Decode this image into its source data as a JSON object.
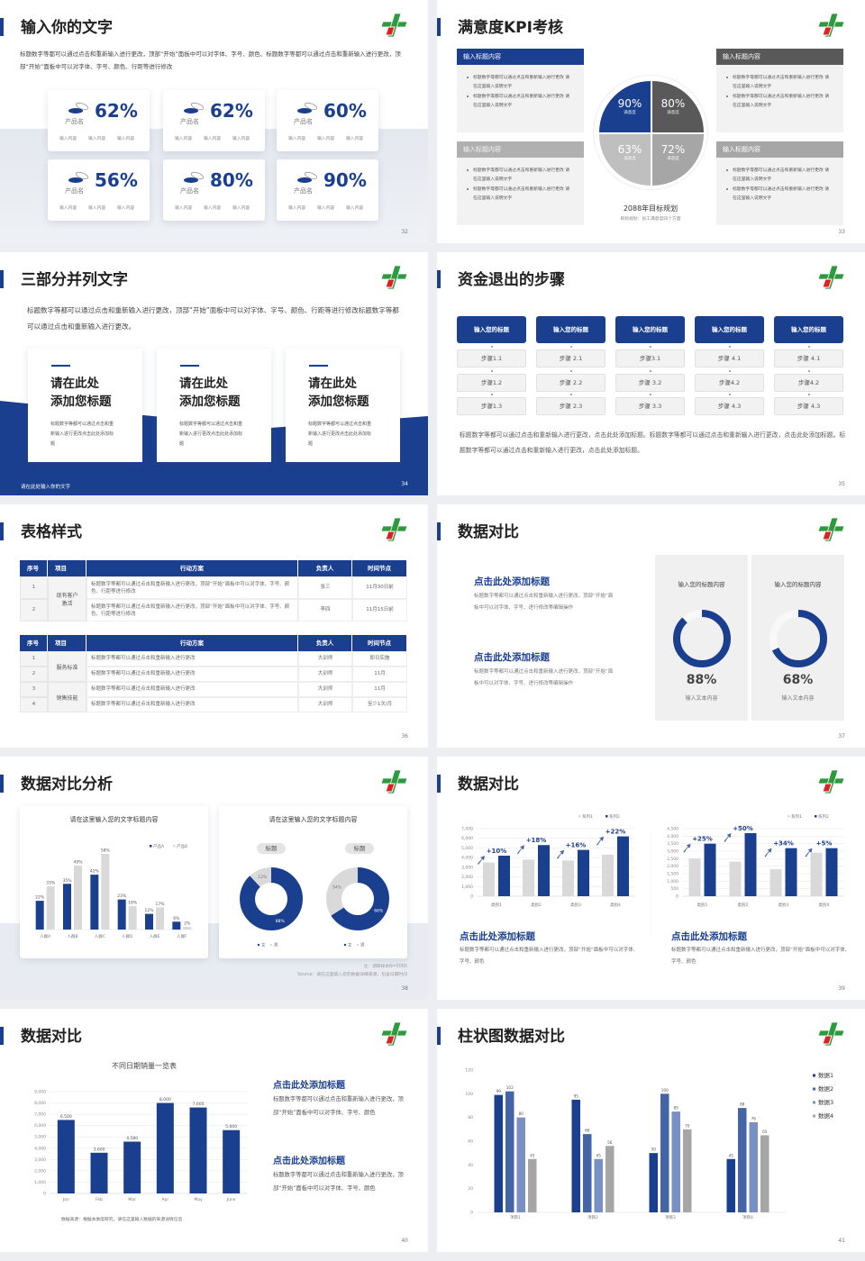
{
  "colors": {
    "primary": "#1b3f8f",
    "dark_gray": "#595959",
    "gray": "#a6a6a6",
    "light_gray": "#d9d9d9",
    "logo_green": "#2e9a3e",
    "logo_red": "#e02020"
  },
  "s32": {
    "title": "输入你的文字",
    "page": "32",
    "body": "标题数字等都可以通过点击和重新输入进行更改，顶部“开始”面板中可以对字体、字号、颜色、标题数字等都可以通过点击和重新输入进行更改，顶部“开始”面板中可以对字体、字号、颜色、行距等进行修改",
    "cards": [
      {
        "value": "62%",
        "name": "产品名",
        "items": [
          "输入内容",
          "输入内容",
          "输入内容"
        ]
      },
      {
        "value": "62%",
        "name": "产品名",
        "items": [
          "输入内容",
          "输入内容",
          "输入内容"
        ]
      },
      {
        "value": "60%",
        "name": "产品名",
        "items": [
          "输入内容",
          "输入内容",
          "输入内容"
        ]
      },
      {
        "value": "56%",
        "name": "产品名",
        "items": [
          "输入内容",
          "输入内容",
          "输入内容"
        ]
      },
      {
        "value": "80%",
        "name": "产品名",
        "items": [
          "输入内容",
          "输入内容",
          "输入内容"
        ]
      },
      {
        "value": "90%",
        "name": "产品名",
        "items": [
          "输入内容",
          "输入内容",
          "输入内容"
        ]
      }
    ]
  },
  "s33": {
    "title": "满意度KPI考核",
    "page": "33",
    "boxes": [
      {
        "header": "输入标题内容",
        "bullets": [
          "标题数字等都可以通过点击和重新输入进行更改 请在这里输入说明文字",
          "标题数字等都可以通过点击和重新输入进行更改 请在这里输入说明文字"
        ]
      },
      {
        "header": "输入标题内容",
        "bullets": [
          "标题数字等都可以通过点击和重新输入进行更改 请在这里输入说明文字",
          "标题数字等都可以通过点击和重新输入进行更改 请在这里输入说明文字"
        ]
      },
      {
        "header": "输入标题内容",
        "bullets": [
          "标题数字等都可以通过点击和重新输入进行更改 请在这里输入说明文字",
          "标题数字等都可以通过点击和重新输入进行更改 请在这里输入说明文字"
        ]
      },
      {
        "header": "输入标题内容",
        "bullets": [
          "标题数字等都可以通过点击和重新输入进行更改 请在这里输入说明文字",
          "标题数字等都可以通过点击和重新输入进行更改 请在这里输入说明文字"
        ]
      }
    ],
    "quadrants": [
      {
        "value": "90%",
        "label": "满意度"
      },
      {
        "value": "80%",
        "label": "满意度"
      },
      {
        "value": "63%",
        "label": "满意度"
      },
      {
        "value": "72%",
        "label": "满意度"
      }
    ],
    "plan_title": "2088年目标规划",
    "plan_sub": "目标规划：员工满意度四个方面"
  },
  "s34": {
    "title": "三部分并列文字",
    "page": "34",
    "body": "标题数字等都可以通过点击和重新输入进行更改，顶部“开始”面板中可以对字体、字号、颜色、行距等进行修改标题数字等都可以通过点击和重新输入进行更改。",
    "cards": [
      {
        "line1": "请在此处",
        "line2": "添加您标题",
        "text": "标题数字等都可以通过点击和重新输入进行更改点击此处添加标题"
      },
      {
        "line1": "请在此处",
        "line2": "添加您标题",
        "text": "标题数字等都可以通过点击和重新输入进行更改点击此处添加标题"
      },
      {
        "line1": "请在此处",
        "line2": "添加您标题",
        "text": "标题数字等都可以通过点击和重新输入进行更改点击此处添加标题"
      }
    ],
    "footer": "请在此处输入你的文字"
  },
  "s35": {
    "title": "资金退出的步骤",
    "page": "35",
    "columns": [
      {
        "header": "输入您的标题",
        "steps": [
          "步骤1.1",
          "步骤1.2",
          "步骤1.3"
        ]
      },
      {
        "header": "输入您的标题",
        "steps": [
          "步骤 2.1",
          "步骤 2.2",
          "步骤 2.3"
        ]
      },
      {
        "header": "输入您的标题",
        "steps": [
          "步骤3.1",
          "步骤 3.2",
          "步骤 3.3"
        ]
      },
      {
        "header": "输入您的标题",
        "steps": [
          "步骤 4.1",
          "步骤4.2",
          "步骤 4.3"
        ]
      },
      {
        "header": "输入您的标题",
        "steps": [
          "步骤 4.1",
          "步骤4.2",
          "步骤 4.3"
        ]
      }
    ],
    "body": "标题数字等都可以通过点击和重新输入进行更改，点击此处添加标题。标题数字等都可以通过点击和重新输入进行更改，点击此处添加标题。标题数字等都可以通过点击和重新输入进行更改，点击此处添加标题。"
  },
  "s36": {
    "title": "表格样式",
    "page": "36",
    "headers": [
      "序号",
      "项目",
      "行动方案",
      "负责人",
      "时间节点"
    ],
    "table1": {
      "groups": [
        {
          "name": "现有客户激活",
          "rows": [
            {
              "no": "1",
              "plan": "标题数字等都可以通过点击和重新输入进行更改，顶部“开始”面板中可以对字体、字号、颜色、行距等进行修改",
              "owner": "张三",
              "time": "11月30日前"
            },
            {
              "no": "2",
              "plan": "标题数字等都可以通过点击和重新输入进行更改，顶部“开始”面板中可以对字体、字号、颜色、行距等进行修改",
              "owner": "李四",
              "time": "11月15日前"
            }
          ]
        }
      ]
    },
    "table2": {
      "groups": [
        {
          "name": "服务标准",
          "rows": [
            {
              "no": "1",
              "plan": "标题数字等都可以通过点击和重新输入进行更改",
              "owner": "大训师",
              "time": "即日实施"
            },
            {
              "no": "2",
              "plan": "标题数字等都可以通过点击和重新输入进行更改",
              "owner": "大训师",
              "time": "11月"
            }
          ]
        },
        {
          "name": "销售技能",
          "rows": [
            {
              "no": "3",
              "plan": "标题数字等都可以通过点击和重新输入进行更改",
              "owner": "大训师",
              "time": "11月"
            },
            {
              "no": "4",
              "plan": "标题数字等都可以通过点击和重新输入进行更改",
              "owner": "大训师",
              "time": "至少1次/月"
            }
          ]
        }
      ]
    }
  },
  "s37": {
    "title": "数据对比",
    "page": "37",
    "blocks": [
      {
        "title": "点击此处添加标题",
        "text": "标题数字等都可以通过点击和重新输入进行更改，顶部“开始”面板中可以对字体、字号、进行修改等编辑操作"
      },
      {
        "title": "点击此处添加标题",
        "text": "标题数字等都可以通过点击和重新输入进行更改，顶部“开始”面板中可以对字体、字号、进行修改等编辑操作"
      }
    ],
    "panels": [
      {
        "title": "输入您的标题内容",
        "value": 88,
        "label": "88%",
        "caption": "输入文本内容"
      },
      {
        "title": "输入您的标题内容",
        "value": 68,
        "label": "68%",
        "caption": "输入文本内容"
      }
    ]
  },
  "s38": {
    "title": "数据对比分析",
    "page": "38",
    "card_titles": [
      "请在这里输入您的文字标题内容",
      "请在这里输入您的文字标题内容"
    ],
    "donut_tags": [
      "标题",
      "标题"
    ],
    "note": "注：调研样本N=5000",
    "source": "Source：请在这里输入您的数据详细来源，包含日期时间"
  },
  "s39": {
    "title": "数据对比",
    "page": "39",
    "blocks": [
      {
        "title": "点击此处添加标题",
        "text": "标题数字等都可以通过点击和重新输入进行更改，顶部“开始”面板中可以对字体、字号、颜色"
      },
      {
        "title": "点击此处添加标题",
        "text": "标题数字等都可以通过点击和重新输入进行更改，顶部“开始”面板中可以对字体、字号、颜色"
      }
    ]
  },
  "s40": {
    "title": "数据对比",
    "page": "40",
    "source": "数据来源：根据本季度研究，请在这里输入数据的来源详情信息",
    "blocks": [
      {
        "title": "点击此处添加标题",
        "text": "标题数字等都可以通过点击和重新输入进行更改，顶部“开始”面板中可以对字体、字号、颜色"
      },
      {
        "title": "点击此处添加标题",
        "text": "标题数字等都可以通过点击和重新输入进行更改，顶部“开始”面板中可以对字体、字号、颜色"
      }
    ]
  },
  "s41": {
    "title": "柱状图数据对比",
    "page": "41"
  },
  "chart_data": [
    {
      "type": "bar",
      "title": "",
      "categories": [
        "人群A",
        "人群B",
        "人群C",
        "人群D",
        "人群E",
        "人群F"
      ],
      "series": [
        {
          "name": "产品A",
          "values": [
            22,
            35,
            42,
            23,
            12,
            6
          ],
          "labels": [
            "22%",
            "35%",
            "42%",
            "23%",
            "12%",
            "6%"
          ],
          "color": "#1b3f8f"
        },
        {
          "name": "产品B",
          "values": [
            33,
            49,
            58,
            18,
            17,
            2
          ],
          "labels": [
            "33%",
            "49%",
            "58%",
            "18%",
            "17%",
            "2%"
          ],
          "color": "#d9d9d9"
        }
      ],
      "ylim": [
        0,
        60
      ],
      "grid": false,
      "legend": "top-right"
    },
    {
      "type": "pie",
      "donut": true,
      "slices": [
        {
          "name": "女",
          "value": 88,
          "label": "88%",
          "color": "#1b3f8f"
        },
        {
          "name": "男",
          "value": 12,
          "label": "12%",
          "color": "#d9d9d9"
        }
      ],
      "legend": "bottom"
    },
    {
      "type": "pie",
      "donut": true,
      "slices": [
        {
          "name": "女",
          "value": 66,
          "label": "66%",
          "color": "#1b3f8f"
        },
        {
          "name": "男",
          "value": 34,
          "label": "34%",
          "color": "#d9d9d9"
        }
      ],
      "legend": "bottom"
    },
    {
      "type": "bar",
      "categories": [
        "类别1",
        "类别2",
        "类别3",
        "类别4"
      ],
      "series": [
        {
          "name": "系列1",
          "values": [
            3500,
            3800,
            3700,
            4300
          ],
          "color": "#d9d9d9"
        },
        {
          "name": "系列2",
          "values": [
            4200,
            5300,
            4800,
            6200
          ],
          "color": "#1b3f8f"
        }
      ],
      "annotations": [
        "+10%",
        "+18%",
        "+16%",
        "+22%"
      ],
      "ylim": [
        0,
        7000
      ],
      "yticks": [
        "0",
        "1,000",
        "2,000",
        "3,000",
        "4,000",
        "5,000",
        "6,000",
        "7,000"
      ],
      "grid": true,
      "legend": "top-right"
    },
    {
      "type": "bar",
      "categories": [
        "类别1",
        "类别2",
        "类别3",
        "类别4"
      ],
      "series": [
        {
          "name": "系列1",
          "values": [
            2500,
            2300,
            1800,
            2900
          ],
          "color": "#d9d9d9"
        },
        {
          "name": "系列2",
          "values": [
            3500,
            4200,
            3200,
            3200
          ],
          "color": "#1b3f8f"
        }
      ],
      "annotations": [
        "+25%",
        "+50%",
        "+34%",
        "+5%"
      ],
      "ylim": [
        0,
        4500
      ],
      "yticks": [
        "0",
        "500",
        "1,000",
        "1,500",
        "2,000",
        "2,500",
        "3,000",
        "3,500",
        "4,000",
        "4,500"
      ],
      "grid": true,
      "legend": "top-right"
    },
    {
      "type": "bar",
      "title": "不同日期销量一览表",
      "categories": [
        "Jan",
        "Feb",
        "Mar",
        "Apr",
        "May",
        "June"
      ],
      "series": [
        {
          "values": [
            6500,
            3600,
            4580,
            8000,
            7600,
            5600
          ],
          "labels": [
            "6,500",
            "3,600",
            "4,580",
            "8,000",
            "7,600",
            "5,600"
          ],
          "color": "#1b3f8f"
        }
      ],
      "ylim": [
        0,
        9000
      ],
      "yticks": [
        "0",
        "1,000",
        "2,000",
        "3,000",
        "4,000",
        "5,000",
        "6,000",
        "7,000",
        "8,000",
        "9,000"
      ],
      "grid": true
    },
    {
      "type": "bar",
      "categories": [
        "项目1",
        "项目2",
        "项目3",
        "项目4"
      ],
      "series": [
        {
          "name": "数据1",
          "values": [
            99,
            95,
            50,
            45
          ],
          "labels": [
            "99",
            "95",
            "50",
            "45"
          ],
          "color": "#1b3f8f"
        },
        {
          "name": "数据2",
          "values": [
            102,
            66,
            100,
            88
          ],
          "labels": [
            "102",
            "66",
            "100",
            "88"
          ],
          "color": "#4464a8"
        },
        {
          "name": "数据3",
          "values": [
            80,
            45,
            85,
            76
          ],
          "labels": [
            "80",
            "45",
            "85",
            "76"
          ],
          "color": "#7890c4"
        },
        {
          "name": "数据4",
          "values": [
            45,
            56,
            70,
            65
          ],
          "labels": [
            "45",
            "56",
            "70",
            "65"
          ],
          "color": "#a6a6a6"
        }
      ],
      "ylim": [
        0,
        120
      ],
      "yticks": [
        "0",
        "20",
        "40",
        "60",
        "80",
        "100",
        "120"
      ],
      "grid": false,
      "legend": "right"
    }
  ]
}
